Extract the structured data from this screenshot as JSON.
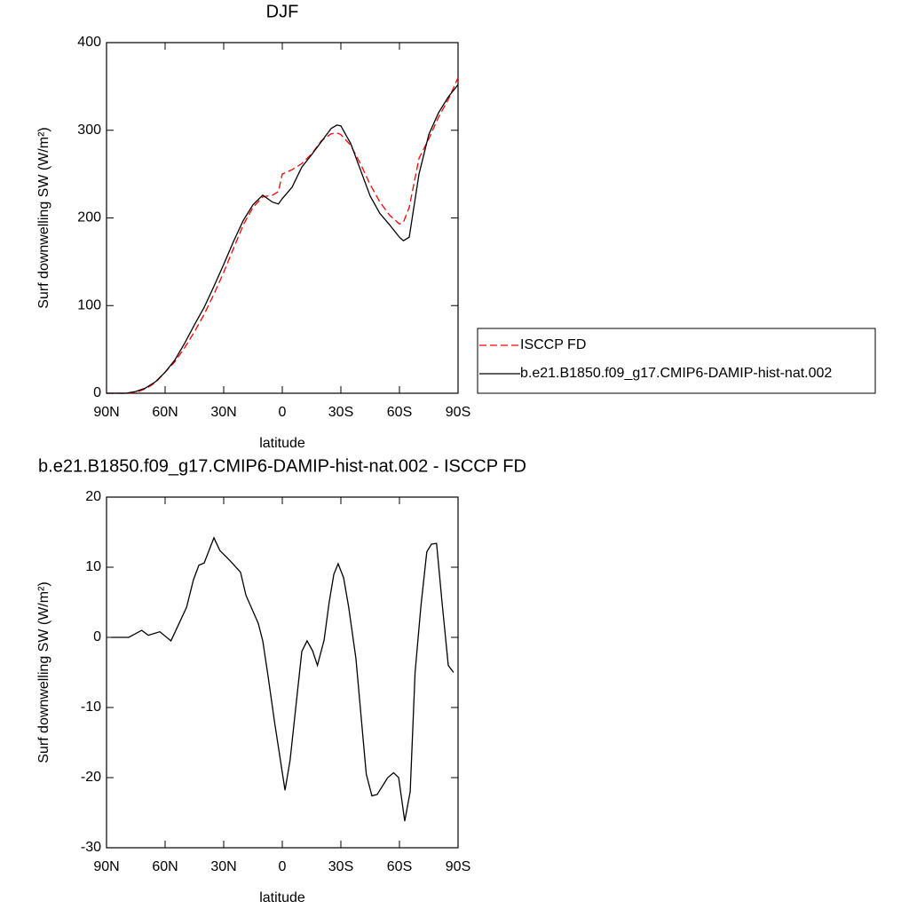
{
  "chart_data": [
    {
      "type": "line",
      "title": "DJF",
      "xlabel": "latitude",
      "ylabel": "Surf downwelling SW (W/m²)",
      "x": [
        90,
        85,
        80,
        75,
        70,
        65,
        60,
        55,
        50,
        45,
        40,
        35,
        30,
        25,
        20,
        15,
        10,
        5,
        2,
        0,
        -5,
        -10,
        -15,
        -20,
        -25,
        -28,
        -30,
        -35,
        -40,
        -45,
        -50,
        -55,
        -60,
        -62,
        -65,
        -70,
        -75,
        -80,
        -85,
        -90
      ],
      "series": [
        {
          "name": "ISCCP FD",
          "color": "#ff0000",
          "dash": true,
          "values": [
            0,
            0,
            0,
            1,
            5,
            12,
            24,
            36,
            52,
            70,
            90,
            113,
            138,
            165,
            192,
            212,
            224,
            226,
            230,
            250,
            255,
            262,
            273,
            288,
            296,
            297,
            295,
            283,
            262,
            238,
            218,
            203,
            193,
            195,
            212,
            268,
            290,
            315,
            335,
            360
          ]
        },
        {
          "name": "b.e21.B1850.f09_g17.CMIP6-DAMIP-hist-nat.002",
          "color": "#000000",
          "dash": false,
          "values": [
            0,
            0,
            0,
            2,
            6,
            13,
            24,
            38,
            57,
            78,
            98,
            122,
            147,
            173,
            197,
            215,
            226,
            218,
            216,
            222,
            235,
            258,
            272,
            287,
            302,
            306,
            305,
            285,
            255,
            225,
            205,
            192,
            178,
            174,
            178,
            250,
            295,
            320,
            338,
            352
          ]
        }
      ],
      "xlim": [
        90,
        -90
      ],
      "ylim": [
        0,
        400
      ],
      "xticks": [
        {
          "value": 90,
          "label": "90N"
        },
        {
          "value": 60,
          "label": "60N"
        },
        {
          "value": 30,
          "label": "30N"
        },
        0,
        {
          "value": -30,
          "label": "30S"
        },
        {
          "value": -60,
          "label": "60S"
        },
        {
          "value": -90,
          "label": "90S"
        }
      ],
      "yticks": [
        0,
        100,
        200,
        300,
        400
      ],
      "legend": "right"
    },
    {
      "type": "line",
      "title": "b.e21.B1850.f09_g17.CMIP6-DAMIP-hist-nat.002 - ISCCP FD",
      "xlabel": "latitude",
      "ylabel": "Surf downwelling SW (W/m²)",
      "x": [
        87.5,
        78.6,
        72,
        68.6,
        62.7,
        57,
        49,
        45.5,
        42.7,
        40,
        35,
        32,
        27,
        21.4,
        18.6,
        12.3,
        10,
        7.3,
        4,
        -1.4,
        -4,
        -10,
        -12.7,
        -15.5,
        -18,
        -21.4,
        -24,
        -26.4,
        -28.6,
        -31.4,
        -34,
        -37.7,
        -43,
        -45.9,
        -48.6,
        -54,
        -57,
        -59.6,
        -62.7,
        -65.5,
        -68,
        -71,
        -74,
        -76.4,
        -79,
        -81.8,
        -85,
        -87.7
      ],
      "series": [
        {
          "color": "#000000",
          "dash": false,
          "values": [
            0,
            0,
            1,
            0.3,
            0.8,
            -0.5,
            4.3,
            8.2,
            10.3,
            10.6,
            14.2,
            12.4,
            11,
            9.3,
            6,
            2,
            -0.5,
            -5.5,
            -12,
            -21.8,
            -17.5,
            -2,
            -0.5,
            -1.9,
            -4,
            -0.4,
            5,
            9,
            10.5,
            8.5,
            4.3,
            -3,
            -19.5,
            -22.6,
            -22.4,
            -20,
            -19.3,
            -20,
            -26.2,
            -22,
            -5,
            4.5,
            12.2,
            13.3,
            13.4,
            5,
            -4,
            -5
          ]
        }
      ],
      "xlim": [
        90,
        -90
      ],
      "ylim": [
        -30,
        20
      ],
      "xticks": [
        {
          "value": 90,
          "label": "90N"
        },
        {
          "value": 60,
          "label": "60N"
        },
        {
          "value": 30,
          "label": "30N"
        },
        0,
        {
          "value": -30,
          "label": "30S"
        },
        {
          "value": -60,
          "label": "60S"
        },
        {
          "value": -90,
          "label": "90S"
        }
      ],
      "yticks": [
        -30,
        -20,
        -10,
        0,
        10,
        20
      ]
    }
  ]
}
